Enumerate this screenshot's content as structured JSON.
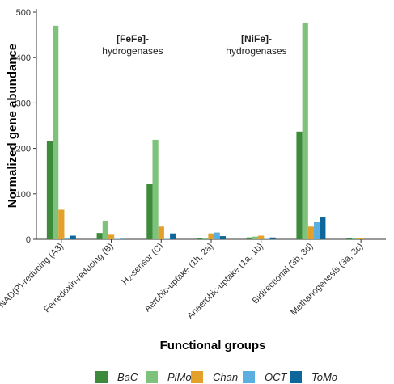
{
  "chart_data": {
    "type": "bar",
    "title": "",
    "xlabel": "Functional groups",
    "ylabel": "Normalized gene abundance",
    "ylim": [
      0,
      500
    ],
    "yticks": [
      0,
      100,
      200,
      300,
      400,
      500
    ],
    "grid": false,
    "legend_position": "bottom",
    "categories": [
      "NAD(P)-reducing (A3)",
      "Ferredoxin-reducing (B)",
      "H₂-sensor (C)",
      "Aerobic-uptake (1h, 2a)",
      "Anaerobic-uptake (1a, 1b)",
      "Bidirectional (3b, 3d)",
      "Methanogenesis (3a, 3c)"
    ],
    "series": [
      {
        "name": "BaC",
        "color": "#3d8b3a",
        "values": [
          217,
          14,
          121,
          2,
          4,
          237,
          2
        ]
      },
      {
        "name": "PiMo",
        "color": "#7ec27b",
        "values": [
          470,
          41,
          219,
          3,
          6,
          477,
          2
        ]
      },
      {
        "name": "Chan",
        "color": "#e3a02b",
        "values": [
          65,
          10,
          28,
          13,
          8,
          28,
          2
        ]
      },
      {
        "name": "OCT",
        "color": "#5aaee0",
        "values": [
          2,
          1,
          1,
          15,
          1,
          38,
          0
        ]
      },
      {
        "name": "ToMo",
        "color": "#0d679b",
        "values": [
          8,
          1,
          13,
          7,
          4,
          48,
          0
        ]
      }
    ],
    "annotations": [
      {
        "bold": "[FeFe]-",
        "text": "hydrogenases"
      },
      {
        "bold": "[NiFe]-",
        "text": "hydrogenases"
      }
    ]
  }
}
